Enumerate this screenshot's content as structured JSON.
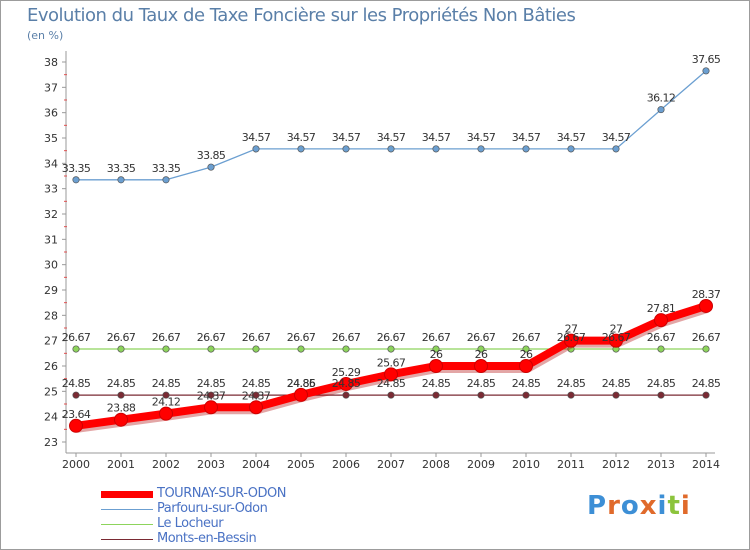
{
  "chart_data": {
    "type": "line",
    "title": "Evolution du Taux de Taxe Foncière sur les Propriétés Non Bâties",
    "ylabel": "(en %)",
    "xlabel": "",
    "ylim": [
      23,
      38
    ],
    "yticks": [
      "23",
      "24",
      "25",
      "26",
      "27",
      "28",
      "29",
      "30",
      "31",
      "32",
      "33",
      "34",
      "35",
      "36",
      "37",
      "38"
    ],
    "x": [
      "2000",
      "2001",
      "2002",
      "2003",
      "2004",
      "2005",
      "2006",
      "2007",
      "2008",
      "2009",
      "2010",
      "2011",
      "2012",
      "2013",
      "2014"
    ],
    "grid": false,
    "series": [
      {
        "name": "TOURNAY-SUR-ODON",
        "color": "#ff0000",
        "values": [
          23.64,
          23.88,
          24.12,
          24.37,
          24.37,
          24.86,
          25.29,
          25.67,
          26,
          26,
          26,
          27,
          27,
          27.81,
          28.37
        ],
        "labels": [
          "23.64",
          "23.88",
          "24.12",
          "24.37",
          "24.37",
          "24.86",
          "25.29",
          "25.67",
          "26",
          "26",
          "26",
          "27",
          "27",
          "27.81",
          "28.37"
        ]
      },
      {
        "name": "Parfouru-sur-Odon",
        "color": "#6b9fd1",
        "values": [
          33.35,
          33.35,
          33.35,
          33.85,
          34.57,
          34.57,
          34.57,
          34.57,
          34.57,
          34.57,
          34.57,
          34.57,
          34.57,
          36.12,
          37.65
        ],
        "labels": [
          "33.35",
          "33.35",
          "33.35",
          "33.85",
          "34.57",
          "34.57",
          "34.57",
          "34.57",
          "34.57",
          "34.57",
          "34.57",
          "34.57",
          "34.57",
          "36.12",
          "37.65"
        ]
      },
      {
        "name": "Le Locheur",
        "color": "#8dd45c",
        "values": [
          26.67,
          26.67,
          26.67,
          26.67,
          26.67,
          26.67,
          26.67,
          26.67,
          26.67,
          26.67,
          26.67,
          26.67,
          26.67,
          26.67,
          26.67
        ],
        "labels": [
          "26.67",
          "26.67",
          "26.67",
          "26.67",
          "26.67",
          "26.67",
          "26.67",
          "26.67",
          "26.67",
          "26.67",
          "26.67",
          "26.67",
          "26.67",
          "26.67",
          "26.67"
        ]
      },
      {
        "name": "Monts-en-Bessin",
        "color": "#7a2a33",
        "values": [
          24.85,
          24.85,
          24.85,
          24.85,
          24.85,
          24.85,
          24.85,
          24.85,
          24.85,
          24.85,
          24.85,
          24.85,
          24.85,
          24.85,
          24.85
        ],
        "labels": [
          "24.85",
          "24.85",
          "24.85",
          "24.85",
          "24.85",
          "24.85",
          "24.85",
          "24.85",
          "24.85",
          "24.85",
          "24.85",
          "24.85",
          "24.85",
          "24.85",
          "24.85"
        ]
      }
    ]
  },
  "logo": {
    "letters": [
      "P",
      "r",
      "o",
      "x",
      "i",
      "t",
      "i"
    ],
    "colors": [
      "#3d8fd6",
      "#e06a2b",
      "#3d8fd6",
      "#e06a2b",
      "#3d8fd6",
      "#8cc43c",
      "#e06a2b"
    ]
  }
}
